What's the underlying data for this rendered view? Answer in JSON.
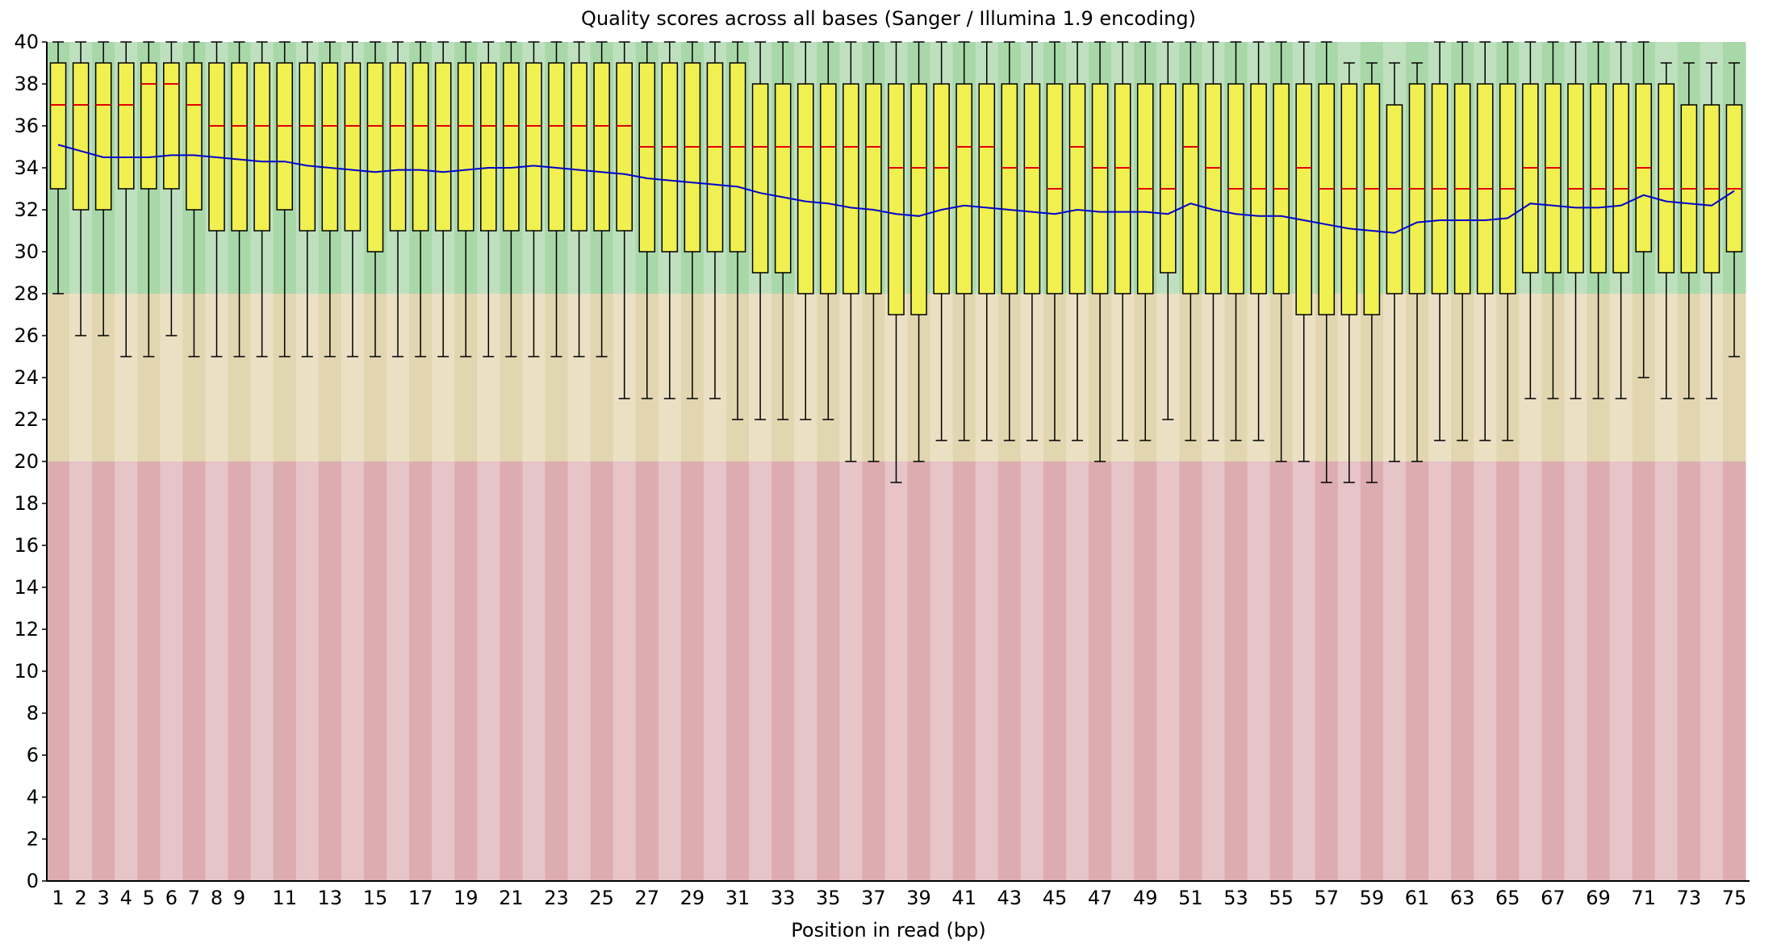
{
  "chart_data": {
    "type": "box",
    "title": "Quality scores across all bases (Sanger / Illumina 1.9 encoding)",
    "xlabel": "Position in read (bp)",
    "ylabel": "",
    "ylim": [
      0,
      40
    ],
    "y_ticks": [
      0,
      2,
      4,
      6,
      8,
      10,
      12,
      14,
      16,
      18,
      20,
      22,
      24,
      26,
      28,
      30,
      32,
      34,
      36,
      38,
      40
    ],
    "grid": false,
    "x_tick_labels": [
      "1",
      "2",
      "3",
      "4",
      "5",
      "6",
      "7",
      "8",
      "9",
      "11",
      "13",
      "15",
      "17",
      "19",
      "21",
      "23",
      "25",
      "27",
      "29",
      "31",
      "33",
      "35",
      "37",
      "39",
      "41",
      "43",
      "45",
      "47",
      "49",
      "51",
      "53",
      "55",
      "57",
      "59",
      "61",
      "63",
      "65",
      "67",
      "69",
      "71",
      "73",
      "75"
    ],
    "quality_zones": [
      {
        "name": "good",
        "from": 28,
        "to": 40,
        "color_a": "#bfe0bf",
        "color_b": "#a8d8a8"
      },
      {
        "name": "reasonable",
        "from": 20,
        "to": 28,
        "color_a": "#ece0c4",
        "color_b": "#e2d6b0"
      },
      {
        "name": "poor",
        "from": 0,
        "to": 20,
        "color_a": "#e6c4c8",
        "color_b": "#dcacb0"
      }
    ],
    "colors": {
      "box": "#f0f050",
      "median": "#e00000",
      "mean_line": "#0000cc",
      "whisker": "#000000"
    },
    "positions": [
      1,
      2,
      3,
      4,
      5,
      6,
      7,
      8,
      9,
      10,
      11,
      12,
      13,
      14,
      15,
      16,
      17,
      18,
      19,
      20,
      21,
      22,
      23,
      24,
      25,
      26,
      27,
      28,
      29,
      30,
      31,
      32,
      33,
      34,
      35,
      36,
      37,
      38,
      39,
      40,
      41,
      42,
      43,
      44,
      45,
      46,
      47,
      48,
      49,
      50,
      51,
      52,
      53,
      54,
      55,
      56,
      57,
      58,
      59,
      60,
      61,
      62,
      63,
      64,
      65,
      66,
      67,
      68,
      69,
      70,
      71,
      72,
      73,
      74,
      75
    ],
    "series": [
      {
        "name": "median",
        "values": [
          37,
          37,
          37,
          37,
          38,
          38,
          37,
          36,
          36,
          36,
          36,
          36,
          36,
          36,
          36,
          36,
          36,
          36,
          36,
          36,
          36,
          36,
          36,
          36,
          36,
          36,
          35,
          35,
          35,
          35,
          35,
          35,
          35,
          35,
          35,
          35,
          35,
          34,
          34,
          34,
          35,
          35,
          34,
          34,
          33,
          35,
          34,
          34,
          33,
          33,
          35,
          34,
          33,
          33,
          33,
          34,
          33,
          33,
          33,
          33,
          33,
          33,
          33,
          33,
          33,
          34,
          34,
          33,
          33,
          33,
          34,
          33,
          33,
          33,
          33
        ]
      },
      {
        "name": "q1",
        "values": [
          33,
          32,
          32,
          33,
          33,
          33,
          32,
          31,
          31,
          31,
          32,
          31,
          31,
          31,
          30,
          31,
          31,
          31,
          31,
          31,
          31,
          31,
          31,
          31,
          31,
          31,
          30,
          30,
          30,
          30,
          30,
          29,
          29,
          28,
          28,
          28,
          28,
          27,
          27,
          28,
          28,
          28,
          28,
          28,
          28,
          28,
          28,
          28,
          28,
          29,
          28,
          28,
          28,
          28,
          28,
          27,
          27,
          27,
          27,
          28,
          28,
          28,
          28,
          28,
          28,
          29,
          29,
          29,
          29,
          29,
          30,
          29,
          29,
          29,
          30
        ]
      },
      {
        "name": "q3",
        "values": [
          39,
          39,
          39,
          39,
          39,
          39,
          39,
          39,
          39,
          39,
          39,
          39,
          39,
          39,
          39,
          39,
          39,
          39,
          39,
          39,
          39,
          39,
          39,
          39,
          39,
          39,
          39,
          39,
          39,
          39,
          39,
          38,
          38,
          38,
          38,
          38,
          38,
          38,
          38,
          38,
          38,
          38,
          38,
          38,
          38,
          38,
          38,
          38,
          38,
          38,
          38,
          38,
          38,
          38,
          38,
          38,
          38,
          38,
          38,
          37,
          38,
          38,
          38,
          38,
          38,
          38,
          38,
          38,
          38,
          38,
          38,
          38,
          37,
          37,
          37
        ]
      },
      {
        "name": "whisker_low",
        "values": [
          28,
          26,
          26,
          25,
          25,
          26,
          25,
          25,
          25,
          25,
          25,
          25,
          25,
          25,
          25,
          25,
          25,
          25,
          25,
          25,
          25,
          25,
          25,
          25,
          25,
          23,
          23,
          23,
          23,
          23,
          22,
          22,
          22,
          22,
          22,
          20,
          20,
          19,
          20,
          21,
          21,
          21,
          21,
          21,
          21,
          21,
          20,
          21,
          21,
          22,
          21,
          21,
          21,
          21,
          20,
          20,
          19,
          19,
          19,
          20,
          20,
          21,
          21,
          21,
          21,
          23,
          23,
          23,
          23,
          23,
          24,
          23,
          23,
          23,
          25
        ]
      },
      {
        "name": "whisker_high",
        "values": [
          40,
          40,
          40,
          40,
          40,
          40,
          40,
          40,
          40,
          40,
          40,
          40,
          40,
          40,
          40,
          40,
          40,
          40,
          40,
          40,
          40,
          40,
          40,
          40,
          40,
          40,
          40,
          40,
          40,
          40,
          40,
          40,
          40,
          40,
          40,
          40,
          40,
          40,
          40,
          40,
          40,
          40,
          40,
          40,
          40,
          40,
          40,
          40,
          40,
          40,
          40,
          40,
          40,
          40,
          40,
          40,
          40,
          39,
          39,
          39,
          39,
          40,
          40,
          40,
          40,
          40,
          40,
          40,
          40,
          40,
          40,
          39,
          39,
          39,
          39
        ]
      },
      {
        "name": "mean",
        "values": [
          35.1,
          34.8,
          34.5,
          34.5,
          34.5,
          34.6,
          34.6,
          34.5,
          34.4,
          34.3,
          34.3,
          34.1,
          34,
          33.9,
          33.8,
          33.9,
          33.9,
          33.8,
          33.9,
          34,
          34,
          34.1,
          34,
          33.9,
          33.8,
          33.7,
          33.5,
          33.4,
          33.3,
          33.2,
          33.1,
          32.8,
          32.6,
          32.4,
          32.3,
          32.1,
          32,
          31.8,
          31.7,
          32,
          32.2,
          32.1,
          32,
          31.9,
          31.8,
          32,
          31.9,
          31.9,
          31.9,
          31.8,
          32.3,
          32,
          31.8,
          31.7,
          31.7,
          31.5,
          31.3,
          31.1,
          31,
          30.9,
          31.4,
          31.5,
          31.5,
          31.5,
          31.6,
          32.3,
          32.2,
          32.1,
          32.1,
          32.2,
          32.7,
          32.4,
          32.3,
          32.2,
          32.9
        ]
      }
    ]
  }
}
